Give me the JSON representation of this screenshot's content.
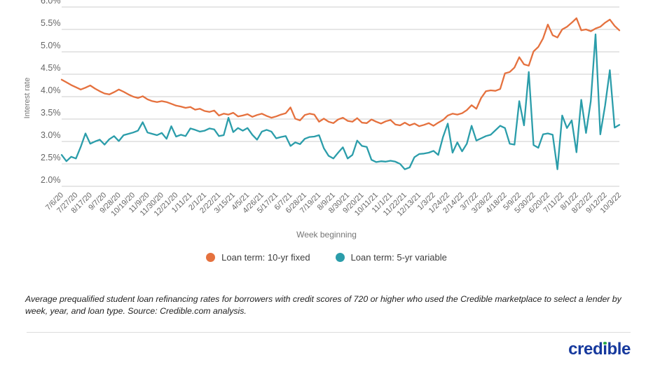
{
  "chart_data": {
    "type": "line",
    "xlabel": "Week beginning",
    "ylabel": "Interest rate",
    "y_range": [
      2.0,
      6.0
    ],
    "grid": "horizontal",
    "legend_position": "bottom-center",
    "y_ticks": [
      {
        "label": "6.0%",
        "value": 6.0
      },
      {
        "label": "5.5%",
        "value": 5.5
      },
      {
        "label": "5.0%",
        "value": 5.0
      },
      {
        "label": "4.5%",
        "value": 4.5
      },
      {
        "label": "4.0%",
        "value": 4.0
      },
      {
        "label": "3.5%",
        "value": 3.5
      },
      {
        "label": "3.0%",
        "value": 3.0
      },
      {
        "label": "2.5%",
        "value": 2.5
      },
      {
        "label": "2.0%",
        "value": 2.0
      }
    ],
    "x_tick_interval_weeks": 3,
    "x_tick_labels": [
      "7/6/20",
      "7/27/20",
      "8/17/20",
      "9/7/20",
      "9/28/20",
      "10/19/20",
      "11/9/20",
      "11/30/20",
      "12/21/20",
      "1/11/21",
      "2/1/21",
      "2/22/21",
      "3/15/21",
      "4/5/21",
      "4/26/21",
      "5/17/21",
      "6/7/21",
      "6/28/21",
      "7/19/21",
      "8/9/21",
      "8/30/21",
      "9/20/21",
      "10/11/21",
      "11/1/21",
      "11/22/21",
      "12/13/21",
      "1/3/22",
      "1/24/22",
      "2/14/22",
      "3/7/22",
      "3/28/22",
      "4/18/22",
      "5/9/22",
      "5/30/22",
      "6/20/22",
      "7/11/22",
      "8/1/22",
      "8/22/22",
      "9/12/22",
      "10/3/22"
    ],
    "series": [
      {
        "name": "Loan term: 10-yr fixed",
        "color": "#e5713e",
        "values": [
          4.38,
          4.32,
          4.26,
          4.21,
          4.16,
          4.2,
          4.25,
          4.18,
          4.12,
          4.07,
          4.05,
          4.1,
          4.16,
          4.11,
          4.05,
          4.0,
          3.97,
          4.01,
          3.94,
          3.9,
          3.88,
          3.9,
          3.88,
          3.84,
          3.8,
          3.78,
          3.75,
          3.77,
          3.71,
          3.73,
          3.68,
          3.66,
          3.69,
          3.58,
          3.62,
          3.6,
          3.64,
          3.56,
          3.58,
          3.61,
          3.55,
          3.59,
          3.62,
          3.57,
          3.53,
          3.56,
          3.6,
          3.63,
          3.76,
          3.51,
          3.47,
          3.59,
          3.62,
          3.6,
          3.44,
          3.51,
          3.44,
          3.41,
          3.49,
          3.53,
          3.46,
          3.44,
          3.52,
          3.42,
          3.41,
          3.49,
          3.44,
          3.4,
          3.45,
          3.48,
          3.38,
          3.36,
          3.42,
          3.36,
          3.4,
          3.34,
          3.37,
          3.41,
          3.35,
          3.42,
          3.48,
          3.58,
          3.62,
          3.6,
          3.63,
          3.7,
          3.81,
          3.73,
          3.97,
          4.12,
          4.14,
          4.13,
          4.17,
          4.52,
          4.55,
          4.65,
          4.88,
          4.72,
          4.69,
          5.01,
          5.11,
          5.3,
          5.61,
          5.37,
          5.32,
          5.5,
          5.56,
          5.65,
          5.75,
          5.48,
          5.5,
          5.46,
          5.52,
          5.56,
          5.65,
          5.72,
          5.58,
          5.48
        ]
      },
      {
        "name": "Loan term: 5-yr variable",
        "color": "#2b9daa",
        "values": [
          2.7,
          2.56,
          2.66,
          2.62,
          2.88,
          3.18,
          2.95,
          3.0,
          3.04,
          2.93,
          3.05,
          3.12,
          3.01,
          3.14,
          3.17,
          3.2,
          3.24,
          3.43,
          3.2,
          3.17,
          3.14,
          3.19,
          3.06,
          3.34,
          3.11,
          3.15,
          3.12,
          3.29,
          3.26,
          3.22,
          3.24,
          3.29,
          3.27,
          3.12,
          3.14,
          3.53,
          3.21,
          3.3,
          3.24,
          3.3,
          3.15,
          3.04,
          3.22,
          3.26,
          3.22,
          3.07,
          3.1,
          3.12,
          2.9,
          2.98,
          2.94,
          3.06,
          3.1,
          3.11,
          3.14,
          2.85,
          2.68,
          2.62,
          2.75,
          2.87,
          2.62,
          2.7,
          3.02,
          2.9,
          2.88,
          2.59,
          2.54,
          2.56,
          2.55,
          2.57,
          2.55,
          2.5,
          2.38,
          2.42,
          2.65,
          2.72,
          2.73,
          2.75,
          2.79,
          2.7,
          3.1,
          3.4,
          2.75,
          2.98,
          2.78,
          2.95,
          3.35,
          3.02,
          3.07,
          3.12,
          3.15,
          3.25,
          3.35,
          3.3,
          2.95,
          2.93,
          3.9,
          3.36,
          4.55,
          2.92,
          2.86,
          3.16,
          3.18,
          3.15,
          2.38,
          3.58,
          3.3,
          3.47,
          2.76,
          3.93,
          3.19,
          3.9,
          5.39,
          3.16,
          3.8,
          4.59,
          3.31,
          3.37
        ]
      }
    ]
  },
  "colors": {
    "accent_orange": "#e5713e",
    "accent_teal": "#2b9daa",
    "gridline": "#cccccc",
    "tick_text": "#666666",
    "axis_title_text": "#757575",
    "logo_blue": "#16399d",
    "logo_green": "#2faa4f"
  },
  "caption": "Average prequalified student loan refinancing rates for borrowers with credit scores of 720 or higher who used the Credible marketplace to select a lender by week, year, and loan type. Source: Credible.com analysis.",
  "footer": {
    "logo_text": "credible"
  }
}
